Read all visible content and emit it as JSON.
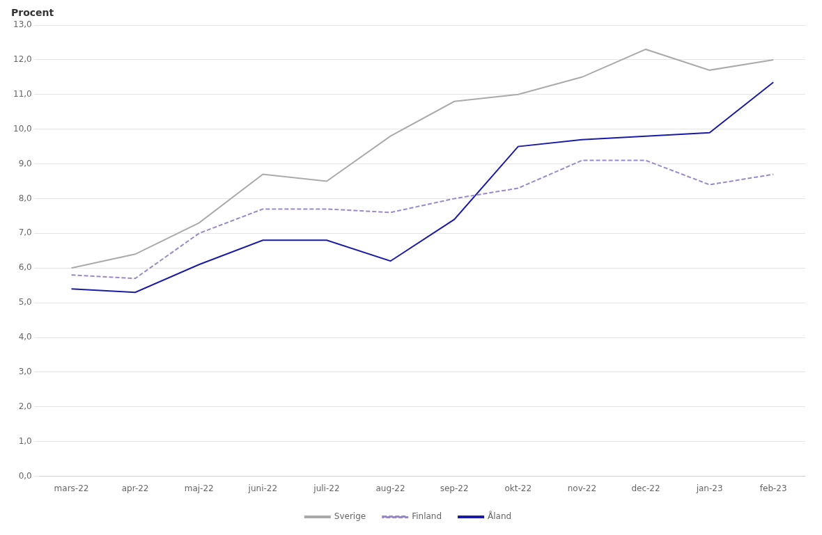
{
  "chart_data": {
    "type": "line",
    "ylabel": "Procent",
    "categories": [
      "mars-22",
      "apr-22",
      "maj-22",
      "juni-22",
      "juli-22",
      "aug-22",
      "sep-22",
      "okt-22",
      "nov-22",
      "dec-22",
      "jan-23",
      "feb-23"
    ],
    "series": [
      {
        "name": "Sverige",
        "color": "#aaaaaa",
        "line_style": "solid",
        "values": [
          6.0,
          6.4,
          7.3,
          8.7,
          8.5,
          9.8,
          10.8,
          11.0,
          11.5,
          12.3,
          11.7,
          12.0
        ]
      },
      {
        "name": "Finland",
        "color": "#9988cc",
        "line_style": "dashed",
        "values": [
          5.8,
          5.7,
          7.0,
          7.7,
          7.7,
          7.6,
          8.0,
          8.3,
          9.1,
          9.1,
          8.4,
          8.7
        ]
      },
      {
        "name": "Åland",
        "color": "#1a1aaa",
        "line_style": "solid",
        "values": [
          5.4,
          5.3,
          6.1,
          6.8,
          6.8,
          6.2,
          7.4,
          9.5,
          9.7,
          9.8,
          9.9,
          11.35
        ]
      }
    ],
    "ylim": [
      0.0,
      13.0
    ],
    "yticks": [
      {
        "value": 0,
        "label": "0,0"
      },
      {
        "value": 1,
        "label": "1,0"
      },
      {
        "value": 2,
        "label": "2,0"
      },
      {
        "value": 3,
        "label": "3,0"
      },
      {
        "value": 4,
        "label": "4,0"
      },
      {
        "value": 5,
        "label": "5,0"
      },
      {
        "value": 6,
        "label": "6,0"
      },
      {
        "value": 7,
        "label": "7,0"
      },
      {
        "value": 8,
        "label": "8,0"
      },
      {
        "value": 9,
        "label": "9,0"
      },
      {
        "value": 10,
        "label": "10,0"
      },
      {
        "value": 11,
        "label": "11,0"
      },
      {
        "value": 12,
        "label": "12,0"
      },
      {
        "value": 13,
        "label": "13,0"
      }
    ],
    "grid": true,
    "legend": "bottom"
  }
}
